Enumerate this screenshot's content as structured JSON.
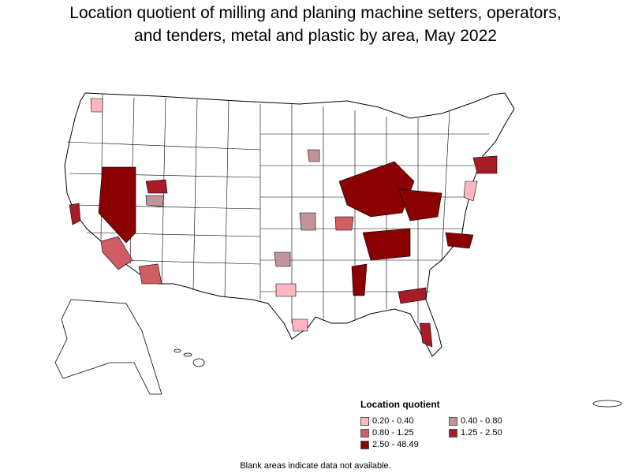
{
  "title": {
    "line1": "Location quotient of milling and planing machine setters, operators,",
    "line2": "and tenders, metal and plastic by area, May 2022"
  },
  "legend": {
    "title": "Location quotient",
    "items": [
      {
        "label": "0.20 - 0.40",
        "color": "#ffb6c1"
      },
      {
        "label": "0.40 - 0.80",
        "color": "#c09498"
      },
      {
        "label": "0.80 - 1.25",
        "color": "#d05c64"
      },
      {
        "label": "1.25 - 2.50",
        "color": "#a81c28"
      },
      {
        "label": "2.50 - 48.49",
        "color": "#8b0000"
      }
    ]
  },
  "footnote": "Blank areas indicate data not available.",
  "colors": {
    "no_data": "#ffffff",
    "border": "#000000"
  }
}
